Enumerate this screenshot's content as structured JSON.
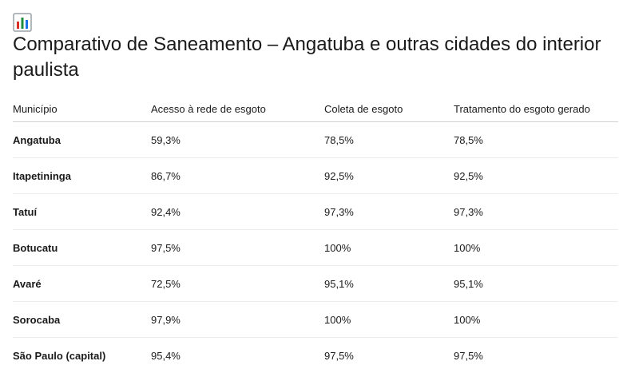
{
  "header": {
    "icon": "bar-chart-icon",
    "title": "Comparativo de Saneamento – Angatuba e outras cidades do interior paulista"
  },
  "table": {
    "columns": [
      "Município",
      "Acesso à rede de esgoto",
      "Coleta de esgoto",
      "Tratamento do esgoto gerado"
    ],
    "rows": [
      {
        "municipio": "Angatuba",
        "acesso": "59,3%",
        "coleta": "78,5%",
        "tratamento": "78,5%"
      },
      {
        "municipio": "Itapetininga",
        "acesso": "86,7%",
        "coleta": "92,5%",
        "tratamento": "92,5%"
      },
      {
        "municipio": "Tatuí",
        "acesso": "92,4%",
        "coleta": "97,3%",
        "tratamento": "97,3%"
      },
      {
        "municipio": "Botucatu",
        "acesso": "97,5%",
        "coleta": "100%",
        "tratamento": "100%"
      },
      {
        "municipio": "Avaré",
        "acesso": "72,5%",
        "coleta": "95,1%",
        "tratamento": "95,1%"
      },
      {
        "municipio": "Sorocaba",
        "acesso": "97,9%",
        "coleta": "100%",
        "tratamento": "100%"
      },
      {
        "municipio": "São Paulo (capital)",
        "acesso": "95,4%",
        "coleta": "97,5%",
        "tratamento": "97,5%"
      }
    ]
  }
}
